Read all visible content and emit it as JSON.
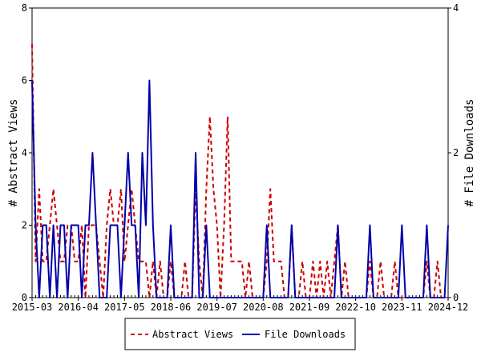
{
  "chart_data": {
    "type": "line",
    "ylabel": "# Abstract Views",
    "y2label": "# File Downloads",
    "ylim": [
      0,
      8
    ],
    "y2lim": [
      0,
      4
    ],
    "yticks": [
      0,
      2,
      4,
      6,
      8
    ],
    "y2ticks": [
      0,
      2,
      4
    ],
    "xticks": [
      "2015-03",
      "2016-04",
      "2017-05",
      "2018-06",
      "2019-07",
      "2020-08",
      "2021-09",
      "2022-10",
      "2023-11",
      "2024-12"
    ],
    "x_start": "2015-03",
    "grid": false,
    "legend_position": "bottom",
    "series": [
      {
        "name": "Abstract Views",
        "color": "#cc0000",
        "dash": "dashed",
        "axis": "left",
        "values": [
          7,
          1,
          3,
          1,
          1,
          2,
          3,
          2,
          1,
          1,
          2,
          2,
          1,
          1,
          2,
          0,
          2,
          2,
          2,
          1,
          0,
          2,
          3,
          2,
          2,
          3,
          1,
          2,
          3,
          2,
          1,
          1,
          1,
          0,
          1,
          0,
          1,
          0,
          0,
          1,
          0,
          0,
          0,
          1,
          0,
          0,
          3,
          1,
          0,
          3,
          5,
          3,
          2,
          0,
          2,
          5,
          1,
          1,
          1,
          1,
          0,
          1,
          0,
          0,
          0,
          0,
          1,
          3,
          1,
          1,
          1,
          0,
          0,
          2,
          0,
          0,
          1,
          0,
          0,
          1,
          0,
          1,
          0,
          1,
          0,
          1,
          2,
          0,
          1,
          0,
          0,
          0,
          0,
          0,
          0,
          1,
          0,
          0,
          1,
          0,
          0,
          0,
          1,
          0,
          0,
          0,
          0,
          0,
          0,
          0,
          0,
          1,
          0,
          0,
          1,
          0,
          0,
          0
        ]
      },
      {
        "name": "File Downloads",
        "color": "#0000aa",
        "dash": "solid",
        "axis": "right",
        "values": [
          3,
          1,
          0,
          1,
          1,
          0,
          1,
          0,
          1,
          1,
          0,
          1,
          1,
          1,
          0,
          1,
          1,
          2,
          1,
          0,
          0,
          0,
          1,
          1,
          1,
          0,
          1,
          2,
          1,
          1,
          0,
          2,
          1,
          3,
          1,
          0,
          0,
          0,
          0,
          1,
          0,
          0,
          0,
          0,
          0,
          0,
          2,
          0,
          0,
          1,
          0,
          0,
          0,
          0,
          0,
          0,
          0,
          0,
          0,
          0,
          0,
          0,
          0,
          0,
          0,
          0,
          1,
          0,
          0,
          0,
          0,
          0,
          0,
          1,
          0,
          0,
          0,
          0,
          0,
          0,
          0,
          0,
          0,
          0,
          0,
          0,
          1,
          0,
          0,
          0,
          0,
          0,
          0,
          0,
          0,
          1,
          0,
          0,
          0,
          0,
          0,
          0,
          0,
          0,
          1,
          0,
          0,
          0,
          0,
          0,
          0,
          1,
          0,
          0,
          0,
          0,
          0,
          1
        ]
      }
    ]
  }
}
